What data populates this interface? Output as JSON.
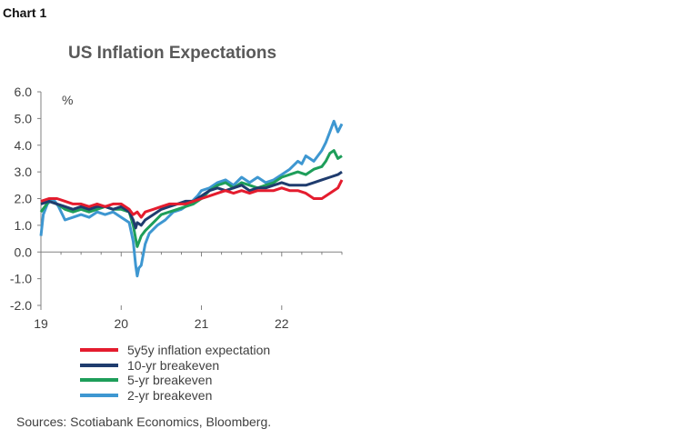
{
  "header": {
    "chart_label": "Chart 1"
  },
  "chart_data": {
    "type": "line",
    "title": "US Inflation Expectations",
    "ylabel": "%",
    "xlabel": "",
    "ylim": [
      -2.0,
      6.0
    ],
    "xlim": [
      0,
      3.75
    ],
    "y_ticks": [
      "6.0",
      "5.0",
      "4.0",
      "3.0",
      "2.0",
      "1.0",
      "0.0",
      "-1.0",
      "-2.0"
    ],
    "x_ticks": [
      {
        "value": 0,
        "label": "19"
      },
      {
        "value": 1,
        "label": "20"
      },
      {
        "value": 2,
        "label": "21"
      },
      {
        "value": 3,
        "label": "22"
      }
    ],
    "series": [
      {
        "name": "2-yr breakeven",
        "color": "#3E97D1",
        "x": [
          0,
          0.03,
          0.08,
          0.15,
          0.22,
          0.3,
          0.4,
          0.5,
          0.6,
          0.7,
          0.8,
          0.9,
          1.0,
          1.1,
          1.15,
          1.18,
          1.2,
          1.22,
          1.25,
          1.3,
          1.35,
          1.45,
          1.55,
          1.65,
          1.75,
          1.85,
          1.95,
          2.0,
          2.1,
          2.2,
          2.3,
          2.4,
          2.5,
          2.6,
          2.7,
          2.8,
          2.9,
          3.0,
          3.1,
          3.2,
          3.25,
          3.3,
          3.35,
          3.4,
          3.45,
          3.5,
          3.55,
          3.6,
          3.65,
          3.7,
          3.75
        ],
        "values": [
          0.6,
          1.4,
          1.8,
          2.0,
          1.7,
          1.2,
          1.3,
          1.4,
          1.3,
          1.5,
          1.4,
          1.5,
          1.3,
          1.1,
          0.4,
          -0.5,
          -0.9,
          -0.6,
          -0.5,
          0.3,
          0.7,
          1.0,
          1.2,
          1.5,
          1.6,
          1.8,
          2.1,
          2.3,
          2.4,
          2.6,
          2.7,
          2.5,
          2.8,
          2.6,
          2.8,
          2.6,
          2.7,
          2.9,
          3.1,
          3.4,
          3.3,
          3.6,
          3.5,
          3.4,
          3.6,
          3.8,
          4.1,
          4.5,
          4.9,
          4.5,
          4.8
        ]
      },
      {
        "name": "5-yr breakeven",
        "color": "#1E9E5A",
        "x": [
          0,
          0.05,
          0.1,
          0.2,
          0.3,
          0.4,
          0.5,
          0.6,
          0.7,
          0.8,
          0.9,
          1.0,
          1.1,
          1.15,
          1.18,
          1.2,
          1.25,
          1.3,
          1.4,
          1.5,
          1.6,
          1.7,
          1.8,
          1.9,
          2.0,
          2.1,
          2.2,
          2.3,
          2.4,
          2.5,
          2.6,
          2.7,
          2.8,
          2.9,
          3.0,
          3.1,
          3.2,
          3.3,
          3.4,
          3.5,
          3.55,
          3.6,
          3.65,
          3.7,
          3.75
        ],
        "values": [
          1.5,
          1.7,
          1.9,
          1.8,
          1.6,
          1.5,
          1.6,
          1.5,
          1.6,
          1.7,
          1.6,
          1.6,
          1.5,
          1.0,
          0.5,
          0.2,
          0.6,
          0.8,
          1.1,
          1.4,
          1.5,
          1.6,
          1.7,
          1.8,
          2.0,
          2.3,
          2.5,
          2.6,
          2.4,
          2.6,
          2.5,
          2.4,
          2.5,
          2.6,
          2.8,
          2.9,
          3.0,
          2.9,
          3.1,
          3.2,
          3.4,
          3.7,
          3.8,
          3.5,
          3.6
        ]
      },
      {
        "name": "10-yr breakeven",
        "color": "#1F3C6E",
        "x": [
          0,
          0.1,
          0.2,
          0.3,
          0.4,
          0.5,
          0.6,
          0.7,
          0.8,
          0.9,
          1.0,
          1.1,
          1.15,
          1.18,
          1.2,
          1.25,
          1.3,
          1.4,
          1.5,
          1.6,
          1.7,
          1.8,
          1.9,
          2.0,
          2.1,
          2.2,
          2.3,
          2.4,
          2.5,
          2.6,
          2.7,
          2.8,
          2.9,
          3.0,
          3.1,
          3.2,
          3.3,
          3.4,
          3.5,
          3.6,
          3.7,
          3.75
        ],
        "values": [
          1.8,
          1.9,
          1.8,
          1.7,
          1.6,
          1.7,
          1.6,
          1.7,
          1.7,
          1.6,
          1.7,
          1.5,
          1.2,
          0.9,
          1.1,
          1.0,
          1.2,
          1.4,
          1.6,
          1.7,
          1.8,
          1.9,
          1.9,
          2.1,
          2.3,
          2.4,
          2.3,
          2.4,
          2.5,
          2.3,
          2.4,
          2.4,
          2.5,
          2.6,
          2.5,
          2.5,
          2.5,
          2.6,
          2.7,
          2.8,
          2.9,
          3.0
        ]
      },
      {
        "name": "5y5y inflation expectation",
        "color": "#E41C2E",
        "x": [
          0,
          0.1,
          0.2,
          0.3,
          0.4,
          0.5,
          0.6,
          0.7,
          0.8,
          0.9,
          1.0,
          1.1,
          1.15,
          1.2,
          1.25,
          1.3,
          1.4,
          1.5,
          1.6,
          1.7,
          1.8,
          1.9,
          2.0,
          2.1,
          2.2,
          2.3,
          2.4,
          2.5,
          2.6,
          2.7,
          2.8,
          2.9,
          3.0,
          3.1,
          3.2,
          3.3,
          3.4,
          3.5,
          3.6,
          3.7,
          3.75
        ],
        "values": [
          1.9,
          2.0,
          2.0,
          1.9,
          1.8,
          1.8,
          1.7,
          1.8,
          1.7,
          1.8,
          1.8,
          1.6,
          1.4,
          1.5,
          1.3,
          1.5,
          1.6,
          1.7,
          1.8,
          1.8,
          1.8,
          1.9,
          2.0,
          2.1,
          2.2,
          2.3,
          2.2,
          2.3,
          2.2,
          2.3,
          2.3,
          2.3,
          2.4,
          2.3,
          2.3,
          2.2,
          2.0,
          2.0,
          2.2,
          2.4,
          2.7
        ]
      }
    ],
    "legend": [
      {
        "name": "5y5y inflation expectation",
        "color": "#E41C2E"
      },
      {
        "name": "10-yr breakeven",
        "color": "#1F3C6E"
      },
      {
        "name": "5-yr breakeven",
        "color": "#1E9E5A"
      },
      {
        "name": "2-yr breakeven",
        "color": "#3E97D1"
      }
    ],
    "legend_position": "bottom"
  },
  "footer": {
    "source": "Sources: Scotiabank Economics, Bloomberg."
  }
}
